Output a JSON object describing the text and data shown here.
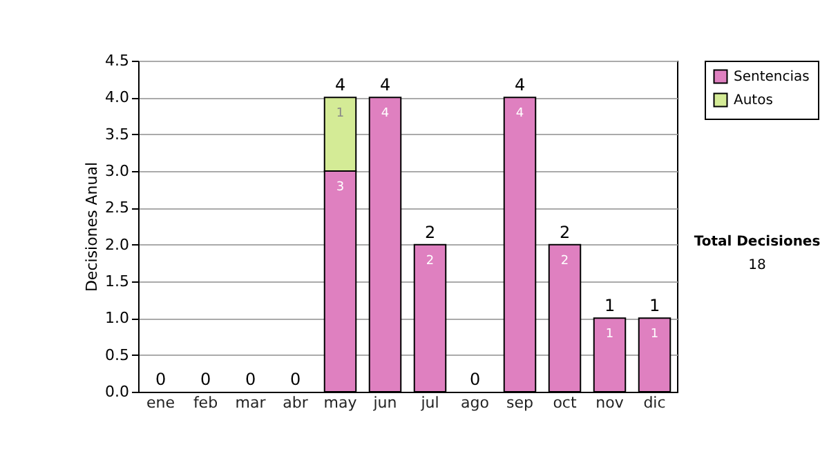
{
  "chart_data": {
    "type": "bar",
    "stacked": true,
    "ylabel": "Decisiones Anual",
    "categories": [
      "ene",
      "feb",
      "mar",
      "abr",
      "may",
      "jun",
      "jul",
      "ago",
      "sep",
      "oct",
      "nov",
      "dic"
    ],
    "series": [
      {
        "name": "Sentencias",
        "color": "#df80c0",
        "values": [
          0,
          0,
          0,
          0,
          3,
          4,
          2,
          0,
          4,
          2,
          1,
          1
        ],
        "value_labels": [
          null,
          null,
          null,
          null,
          "3",
          "4",
          "2",
          null,
          "4",
          "2",
          "1",
          "1"
        ]
      },
      {
        "name": "Autos",
        "color": "#d4eb96",
        "values": [
          0,
          0,
          0,
          0,
          1,
          0,
          0,
          0,
          0,
          0,
          0,
          0
        ],
        "value_labels": [
          null,
          null,
          null,
          null,
          "1",
          null,
          null,
          null,
          null,
          null,
          null,
          null
        ]
      }
    ],
    "totals": [
      "0",
      "0",
      "0",
      "0",
      "4",
      "4",
      "2",
      "0",
      "4",
      "2",
      "1",
      "1"
    ],
    "ylim": [
      0,
      4.5
    ],
    "yticks": [
      {
        "value": 0,
        "label": "0.0"
      },
      0.5,
      {
        "value": 1,
        "label": "1.0"
      },
      1.5,
      {
        "value": 2,
        "label": "2.0"
      },
      2.5,
      {
        "value": 3,
        "label": "3.0"
      },
      3.5,
      {
        "value": 4,
        "label": "4.0"
      },
      4.5
    ],
    "grid": "y",
    "legend": "right",
    "annotations": [
      "Total Decisiones",
      "18"
    ]
  }
}
